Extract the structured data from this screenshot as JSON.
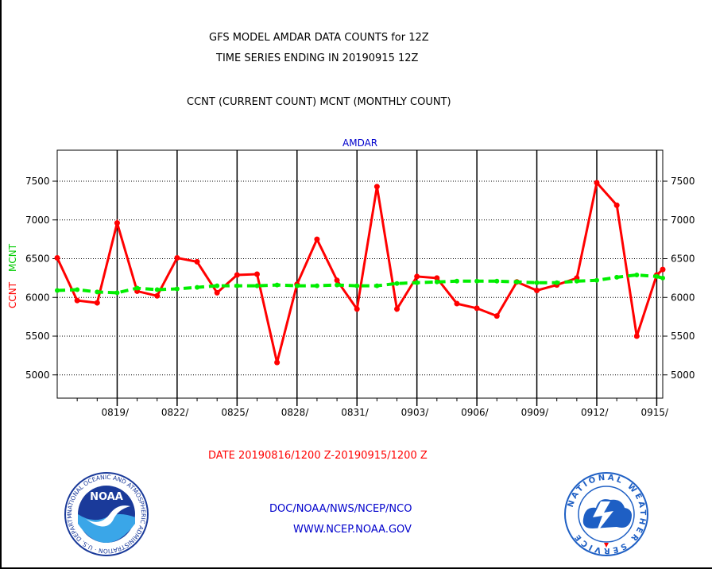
{
  "chart_data": {
    "type": "line",
    "title_lines": [
      "GFS MODEL AMDAR DATA COUNTS for 12Z",
      "TIME SERIES ENDING IN 20190915 12Z"
    ],
    "subtitle": "CCNT (CURRENT COUNT) MCNT (MONTHLY COUNT)",
    "panel_label": "AMDAR",
    "ylabel_ccnt": "CCNT",
    "ylabel_mcnt": "MCNT",
    "xlabel": "DATE 20190816/1200 Z-20190915/1200 Z",
    "ylim": [
      4700,
      7900
    ],
    "y_ticks": [
      5000,
      5500,
      6000,
      6500,
      7000,
      7500
    ],
    "x_tick_labels": [
      "0819/",
      "0822/",
      "0825/",
      "0828/",
      "0831/",
      "0903/",
      "0906/",
      "0909/",
      "0912/",
      "0915/"
    ],
    "x_tick_positions": [
      3,
      6,
      9,
      12,
      15,
      18,
      21,
      24,
      27,
      30
    ],
    "xlim": [
      0,
      30.3
    ],
    "grid": true,
    "series": [
      {
        "name": "CCNT",
        "color": "#ff0000",
        "x": [
          0,
          1,
          2,
          3,
          4,
          5,
          6,
          7,
          8,
          9,
          10,
          11,
          12,
          13,
          14,
          15,
          16,
          17,
          18,
          19,
          20,
          21,
          22,
          23,
          24,
          25,
          26,
          27,
          28,
          29,
          30,
          30.3
        ],
        "values": [
          6510,
          5960,
          5930,
          6960,
          6080,
          6020,
          6510,
          6460,
          6060,
          6290,
          6300,
          5160,
          6170,
          6750,
          6220,
          5850,
          7430,
          5850,
          6270,
          6250,
          5920,
          5860,
          5760,
          6200,
          6090,
          6160,
          6250,
          7480,
          7190,
          5500,
          6290,
          6360
        ]
      },
      {
        "name": "MCNT",
        "color": "#00ee00",
        "x": [
          0,
          1,
          2,
          3,
          4,
          5,
          6,
          7,
          8,
          9,
          10,
          11,
          12,
          13,
          14,
          15,
          16,
          17,
          18,
          19,
          20,
          21,
          22,
          23,
          24,
          25,
          26,
          27,
          28,
          29,
          30,
          30.3
        ],
        "values": [
          6090,
          6100,
          6070,
          6060,
          6120,
          6100,
          6110,
          6130,
          6150,
          6150,
          6150,
          6160,
          6150,
          6150,
          6160,
          6150,
          6150,
          6180,
          6190,
          6200,
          6210,
          6210,
          6210,
          6200,
          6190,
          6190,
          6210,
          6220,
          6260,
          6290,
          6270,
          6250
        ]
      }
    ]
  },
  "footer": {
    "org": "DOC/NOAA/NWS/NCEP/NCO",
    "url": "WWW.NCEP.NOAA.GOV",
    "noaa_logo_text": "NOAA",
    "noaa_ring_text": "NATIONAL OCEANIC AND ATMOSPHERIC ADMINISTRATION · U.S. DEPARTMENT OF COMMERCE",
    "nws_ring_text": "NATIONAL WEATHER SERVICE"
  },
  "colors": {
    "ccnt": "#ff0000",
    "mcnt": "#00ee00",
    "accent_blue": "#0000cc",
    "noaa_blue": "#1a3a9a",
    "nws_blue": "#1e5fc4"
  }
}
